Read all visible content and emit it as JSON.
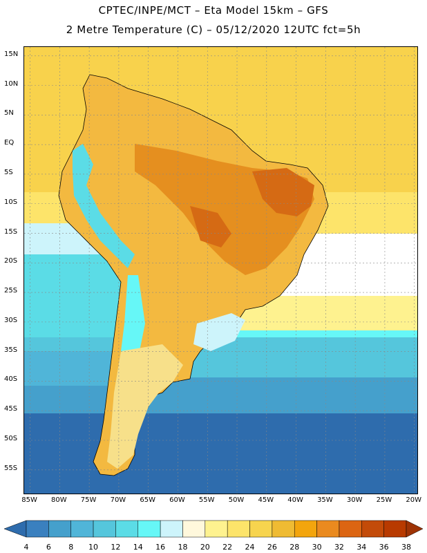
{
  "header": {
    "line1": "CPTEC/INPE/MCT –  Eta Model 15km – GFS",
    "line2": "2 Metre Temperature (C) – 05/12/2020 12UTC fct=5h"
  },
  "map": {
    "lat_labels": [
      "15N",
      "10N",
      "5N",
      "EQ",
      "5S",
      "10S",
      "15S",
      "20S",
      "25S",
      "30S",
      "35S",
      "40S",
      "45S",
      "50S",
      "55S"
    ],
    "lat_values": [
      15,
      10,
      5,
      0,
      -5,
      -10,
      -15,
      -20,
      -25,
      -30,
      -35,
      -40,
      -45,
      -50,
      -55
    ],
    "lon_labels": [
      "85W",
      "80W",
      "75W",
      "70W",
      "65W",
      "60W",
      "55W",
      "50W",
      "45W",
      "40W",
      "35W",
      "30W",
      "25W",
      "20W"
    ],
    "lon_values": [
      -85,
      -80,
      -75,
      -70,
      -65,
      -60,
      -55,
      -50,
      -45,
      -40,
      -35,
      -30,
      -25,
      -20
    ],
    "extent": {
      "lon_min": -86,
      "lon_max": -19.5,
      "lat_max": 16.5,
      "lat_min": -59
    }
  },
  "colorbar": {
    "labels": [
      "4",
      "6",
      "8",
      "10",
      "12",
      "14",
      "16",
      "18",
      "20",
      "22",
      "24",
      "26",
      "28",
      "30",
      "32",
      "34",
      "36",
      "38"
    ],
    "colors": [
      "#2e6cad",
      "#3a80bf",
      "#45a0cc",
      "#50b5d8",
      "#55c6dc",
      "#5bdce6",
      "#66f7f7",
      "#cdf4fb",
      "#fff8dc",
      "#fef28f",
      "#fde46a",
      "#f7d44e",
      "#efbb33",
      "#f3a50d",
      "#ea8a1f",
      "#dc6512",
      "#c34b09",
      "#b83a00",
      "#9e3305"
    ]
  }
}
